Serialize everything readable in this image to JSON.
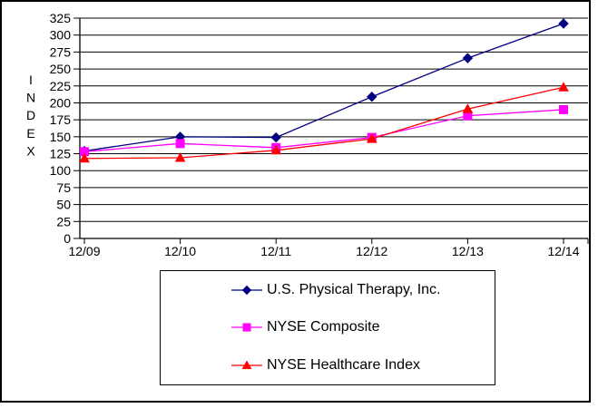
{
  "chart_data": {
    "type": "line",
    "title": "",
    "xlabel": "",
    "ylabel": "INDEX",
    "categories": [
      "12/09",
      "12/10",
      "12/11",
      "12/12",
      "12/13",
      "12/14"
    ],
    "y_ticks": [
      0,
      25,
      50,
      75,
      100,
      125,
      150,
      175,
      200,
      225,
      250,
      275,
      300,
      325
    ],
    "ylim": [
      0,
      325
    ],
    "grid": "horizontal",
    "legend_position": "bottom-boxed",
    "series": [
      {
        "name": "U.S. Physical Therapy, Inc.",
        "color": "#000080",
        "marker": "diamond",
        "values": [
          129,
          150,
          149,
          209,
          266,
          317
        ]
      },
      {
        "name": "NYSE Composite",
        "color": "#FF00FF",
        "marker": "square",
        "values": [
          128,
          140,
          134,
          149,
          181,
          190
        ]
      },
      {
        "name": "NYSE Healthcare Index",
        "color": "#FF0000",
        "marker": "triangle",
        "values": [
          118,
          119,
          130,
          147,
          191,
          223
        ]
      }
    ]
  },
  "colors": {
    "axis": "#000000",
    "gridline": "#000000",
    "frame": "#000000",
    "background": "#ffffff",
    "text": "#000000"
  }
}
